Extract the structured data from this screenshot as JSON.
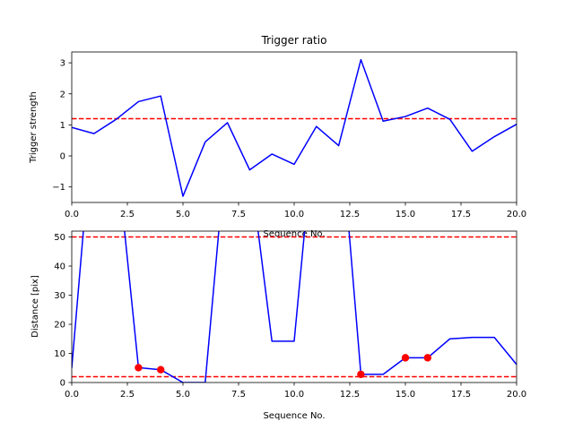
{
  "chart_data": [
    {
      "type": "line",
      "title": "Trigger ratio",
      "xlabel": "Sequence No.",
      "ylabel": "Trigger strength",
      "xlim": [
        0,
        20
      ],
      "ylim": [
        -1.5,
        3.35
      ],
      "xticks": [
        "0.0",
        "2.5",
        "5.0",
        "7.5",
        "10.0",
        "12.5",
        "15.0",
        "17.5",
        "20.0"
      ],
      "yticks": [
        "−1",
        "0",
        "1",
        "2",
        "3"
      ],
      "series": [
        {
          "color": "#0000ff",
          "x": [
            0,
            1,
            2,
            3,
            4,
            5,
            6,
            7,
            8,
            9,
            10,
            11,
            12,
            13,
            14,
            15,
            16,
            17,
            18,
            19,
            20
          ],
          "y": [
            0.92,
            0.72,
            1.18,
            1.75,
            1.93,
            -1.3,
            0.45,
            1.07,
            -0.45,
            0.06,
            -0.27,
            0.95,
            0.33,
            3.1,
            1.12,
            1.27,
            1.54,
            1.18,
            0.15,
            0.62,
            1.02
          ]
        }
      ],
      "hlines": [
        {
          "y": 1.2,
          "color": "#ff0000",
          "style": "dashed"
        }
      ]
    },
    {
      "type": "line",
      "title": "",
      "xlabel": "Sequence No.",
      "ylabel": "Distance [pix]",
      "xlim": [
        0,
        20
      ],
      "ylim": [
        0,
        52
      ],
      "xticks": [
        "0.0",
        "2.5",
        "5.0",
        "7.5",
        "10.0",
        "12.5",
        "15.0",
        "17.5",
        "20.0"
      ],
      "yticks": [
        "0",
        "10",
        "20",
        "30",
        "40",
        "50"
      ],
      "series": [
        {
          "color": "#0000ff",
          "x": [
            0,
            1,
            2,
            3,
            4,
            5,
            6,
            7,
            8,
            9,
            10,
            11,
            12,
            13,
            14,
            15,
            16,
            17,
            18,
            19,
            20
          ],
          "y": [
            5,
            95,
            80,
            5.1,
            4.4,
            0,
            0,
            85,
            75,
            14.2,
            14.2,
            95,
            95,
            2.8,
            2.8,
            8.5,
            8.5,
            15,
            15.5,
            15.5,
            6.2
          ]
        }
      ],
      "markers": {
        "color": "#ff0000",
        "x": [
          3,
          4,
          13,
          15,
          16
        ],
        "y": [
          5.1,
          4.4,
          2.8,
          8.5,
          8.5
        ]
      },
      "hlines": [
        {
          "y": 50,
          "color": "#ff0000",
          "style": "dashed"
        },
        {
          "y": 2,
          "color": "#ff0000",
          "style": "dashed"
        }
      ]
    }
  ]
}
